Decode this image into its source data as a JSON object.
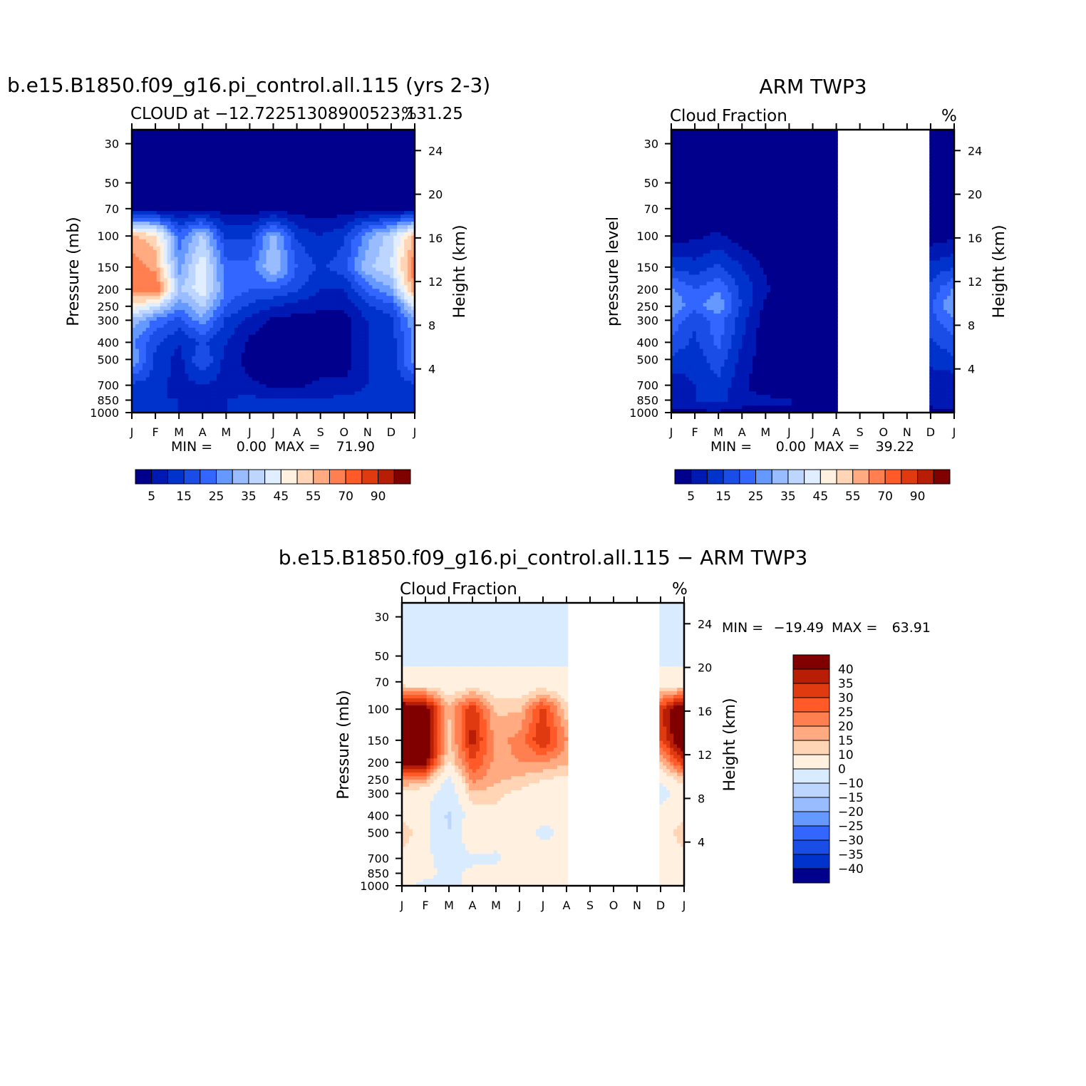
{
  "panels": [
    {
      "id": "model",
      "title": "b.e15.B1850.f09_g16.pi_control.all.115 (yrs 2-3)",
      "subtitle_left": "CLOUD at −12.72251308900523,131.25",
      "subtitle_right": "%",
      "ylabel_left": "Pressure (mb)",
      "ylabel_right": "Height (km)",
      "min_label": "MIN =",
      "min_value": "0.00",
      "max_label": "MAX =",
      "max_value": "71.90",
      "stats": "MIN =    0.00  MAX =   71.90"
    },
    {
      "id": "obs",
      "title": "ARM TWP3",
      "subtitle_left": "Cloud Fraction",
      "subtitle_right": "%",
      "ylabel_left": "pressure level",
      "ylabel_right": "Height (km)",
      "min_label": "MIN =",
      "min_value": "0.00",
      "max_label": "MAX =",
      "max_value": "39.22",
      "stats": "MIN =    0.00  MAX =   39.22",
      "missing_months": [
        "S",
        "O",
        "N"
      ]
    },
    {
      "id": "diff",
      "title": "b.e15.B1850.f09_g16.pi_control.all.115 − ARM TWP3",
      "subtitle_left": "Cloud Fraction",
      "subtitle_right": "%",
      "ylabel_left": "Pressure (mb)",
      "ylabel_right": "Height (km)",
      "min_label": "MIN =",
      "min_value": "−19.49",
      "max_label": "MAX =",
      "max_value": "63.91",
      "stats": "MIN = −19.49  MAX =   63.91",
      "missing_months": [
        "S",
        "O",
        "N"
      ]
    }
  ],
  "chart_data": [
    {
      "type": "heatmap",
      "panel": "model",
      "title": "b.e15.B1850.f09_g16.pi_control.all.115 (yrs 2-3)",
      "x_categories": [
        "J",
        "F",
        "M",
        "A",
        "M",
        "J",
        "J",
        "A",
        "S",
        "O",
        "N",
        "D",
        "J"
      ],
      "y_pressure_ticks": [
        30,
        50,
        70,
        100,
        150,
        200,
        250,
        300,
        400,
        500,
        700,
        850,
        1000
      ],
      "y_height_ticks_km": [
        4,
        8,
        12,
        16,
        20,
        24
      ],
      "ylim_mb": [
        1000,
        25
      ],
      "units": "%",
      "min": 0.0,
      "max": 71.9,
      "values_note": "cloud fraction (%) by month (cols, Jan..Jan) and pressure level (rows, 30..1000 mb), estimated",
      "values": [
        [
          0,
          0,
          0,
          0,
          0,
          0,
          0,
          0,
          0,
          0,
          0,
          0,
          0
        ],
        [
          0,
          0,
          0,
          0,
          0,
          0,
          0,
          0,
          0,
          0,
          0,
          0,
          0
        ],
        [
          3,
          3,
          3,
          3,
          2,
          2,
          2,
          2,
          2,
          2,
          3,
          3,
          3
        ],
        [
          56,
          52,
          22,
          36,
          14,
          14,
          32,
          14,
          10,
          14,
          28,
          38,
          56
        ],
        [
          64,
          58,
          28,
          44,
          22,
          22,
          36,
          20,
          14,
          18,
          34,
          40,
          64
        ],
        [
          62,
          68,
          34,
          44,
          24,
          20,
          20,
          16,
          10,
          10,
          22,
          30,
          60
        ],
        [
          48,
          40,
          26,
          36,
          20,
          14,
          10,
          8,
          6,
          6,
          14,
          18,
          40
        ],
        [
          34,
          24,
          18,
          28,
          14,
          8,
          4,
          3,
          3,
          3,
          10,
          14,
          30
        ],
        [
          26,
          16,
          10,
          16,
          10,
          4,
          2,
          2,
          2,
          2,
          10,
          12,
          26
        ],
        [
          30,
          14,
          8,
          20,
          8,
          3,
          2,
          2,
          2,
          2,
          10,
          12,
          28
        ],
        [
          14,
          12,
          8,
          10,
          8,
          6,
          4,
          4,
          6,
          6,
          10,
          12,
          14
        ],
        [
          12,
          10,
          10,
          8,
          10,
          12,
          10,
          10,
          10,
          12,
          12,
          14,
          12
        ],
        [
          10,
          10,
          10,
          10,
          10,
          10,
          10,
          10,
          10,
          10,
          10,
          10,
          10
        ]
      ]
    },
    {
      "type": "heatmap",
      "panel": "obs",
      "title": "ARM TWP3",
      "x_categories": [
        "J",
        "F",
        "M",
        "A",
        "M",
        "J",
        "J",
        "A",
        "S",
        "O",
        "N",
        "D",
        "J"
      ],
      "y_pressure_ticks": [
        30,
        50,
        70,
        100,
        150,
        200,
        250,
        300,
        400,
        500,
        700,
        850,
        1000
      ],
      "y_height_ticks_km": [
        4,
        8,
        12,
        16,
        20,
        24
      ],
      "ylim_mb": [
        1000,
        25
      ],
      "units": "%",
      "min": 0.0,
      "max": 39.22,
      "values_note": "cloud fraction (%) by month and pressure level, estimated; S-N missing",
      "values": [
        [
          0,
          0,
          0,
          0,
          0,
          0,
          0,
          0,
          null,
          null,
          null,
          0,
          0
        ],
        [
          0,
          0,
          0,
          0,
          0,
          0,
          0,
          0,
          null,
          null,
          null,
          0,
          0
        ],
        [
          0,
          0,
          0,
          0,
          0,
          0,
          0,
          0,
          null,
          null,
          null,
          0,
          0
        ],
        [
          2,
          4,
          6,
          2,
          0,
          0,
          0,
          0,
          null,
          null,
          null,
          2,
          4
        ],
        [
          14,
          12,
          16,
          10,
          4,
          0,
          0,
          0,
          null,
          null,
          null,
          12,
          14
        ],
        [
          26,
          20,
          24,
          14,
          6,
          0,
          0,
          0,
          null,
          null,
          null,
          16,
          26
        ],
        [
          30,
          22,
          30,
          14,
          4,
          0,
          0,
          0,
          null,
          null,
          null,
          20,
          30
        ],
        [
          24,
          16,
          22,
          12,
          2,
          0,
          0,
          0,
          null,
          null,
          null,
          18,
          24
        ],
        [
          18,
          14,
          22,
          10,
          2,
          0,
          0,
          0,
          null,
          null,
          null,
          14,
          18
        ],
        [
          14,
          12,
          18,
          8,
          2,
          0,
          0,
          0,
          null,
          null,
          null,
          12,
          14
        ],
        [
          6,
          10,
          14,
          6,
          2,
          0,
          0,
          0,
          null,
          null,
          null,
          6,
          6
        ],
        [
          8,
          10,
          12,
          6,
          6,
          6,
          0,
          0,
          null,
          null,
          null,
          6,
          8
        ],
        [
          4,
          4,
          4,
          4,
          4,
          4,
          4,
          4,
          null,
          null,
          null,
          4,
          4
        ]
      ]
    },
    {
      "type": "heatmap",
      "panel": "diff",
      "title": "b.e15.B1850.f09_g16.pi_control.all.115 − ARM TWP3",
      "x_categories": [
        "J",
        "F",
        "M",
        "A",
        "M",
        "J",
        "J",
        "A",
        "S",
        "O",
        "N",
        "D",
        "J"
      ],
      "y_pressure_ticks": [
        30,
        50,
        70,
        100,
        150,
        200,
        250,
        300,
        400,
        500,
        700,
        850,
        1000
      ],
      "y_height_ticks_km": [
        4,
        8,
        12,
        16,
        20,
        24
      ],
      "ylim_mb": [
        1000,
        25
      ],
      "units": "%",
      "min": -19.49,
      "max": 63.91,
      "values_note": "model minus obs cloud fraction (%), estimated; S-N missing",
      "values": [
        [
          -2,
          -2,
          -2,
          -2,
          -2,
          -2,
          -2,
          -2,
          null,
          null,
          null,
          -2,
          -2
        ],
        [
          -2,
          -2,
          -2,
          -2,
          -2,
          -2,
          -2,
          -2,
          null,
          null,
          null,
          -2,
          -2
        ],
        [
          3,
          3,
          3,
          3,
          3,
          3,
          3,
          3,
          null,
          null,
          null,
          3,
          3
        ],
        [
          50,
          46,
          16,
          34,
          14,
          14,
          32,
          12,
          null,
          null,
          null,
          34,
          50
        ],
        [
          50,
          46,
          12,
          38,
          18,
          22,
          36,
          20,
          null,
          null,
          null,
          30,
          50
        ],
        [
          44,
          44,
          10,
          30,
          18,
          20,
          20,
          16,
          null,
          null,
          null,
          14,
          34
        ],
        [
          22,
          18,
          -4,
          22,
          16,
          14,
          10,
          8,
          null,
          null,
          null,
          2,
          14
        ],
        [
          8,
          4,
          -6,
          14,
          12,
          8,
          4,
          3,
          null,
          null,
          null,
          -4,
          6
        ],
        [
          6,
          2,
          -12,
          6,
          8,
          4,
          2,
          2,
          null,
          null,
          null,
          4,
          6
        ],
        [
          16,
          2,
          -10,
          10,
          6,
          3,
          -2,
          2,
          null,
          null,
          null,
          2,
          16
        ],
        [
          6,
          2,
          -4,
          -2,
          -2,
          6,
          4,
          4,
          null,
          null,
          null,
          4,
          6
        ],
        [
          2,
          2,
          -2,
          2,
          4,
          6,
          6,
          6,
          null,
          null,
          null,
          6,
          2
        ],
        [
          2,
          -2,
          -2,
          2,
          2,
          2,
          2,
          2,
          null,
          null,
          null,
          2,
          2
        ]
      ]
    }
  ],
  "colorbars": {
    "abs": {
      "labels": [
        "5",
        "15",
        "25",
        "35",
        "45",
        "55",
        "70",
        "90"
      ],
      "colors": [
        "#00008c",
        "#0019b3",
        "#0033cc",
        "#1a4de6",
        "#3366ff",
        "#6699ff",
        "#99bbff",
        "#bcd6ff",
        "#e0eeff",
        "#fff0e0",
        "#ffd5b5",
        "#ffaa80",
        "#ff7f50",
        "#ff5a28",
        "#e03a10",
        "#b81e06",
        "#800000"
      ]
    },
    "diff": {
      "labels": [
        "40",
        "35",
        "30",
        "25",
        "20",
        "15",
        "10",
        "0",
        "−10",
        "−15",
        "−20",
        "−25",
        "−30",
        "−35",
        "−40"
      ],
      "colors": [
        "#800000",
        "#b81e06",
        "#e03a10",
        "#ff5a28",
        "#ff7f50",
        "#ffaa80",
        "#ffd5b5",
        "#fff0e0",
        "#d8ebff",
        "#bcd6ff",
        "#99bbff",
        "#6699ff",
        "#3366ff",
        "#1a4de6",
        "#0033cc",
        "#00008c"
      ]
    }
  }
}
